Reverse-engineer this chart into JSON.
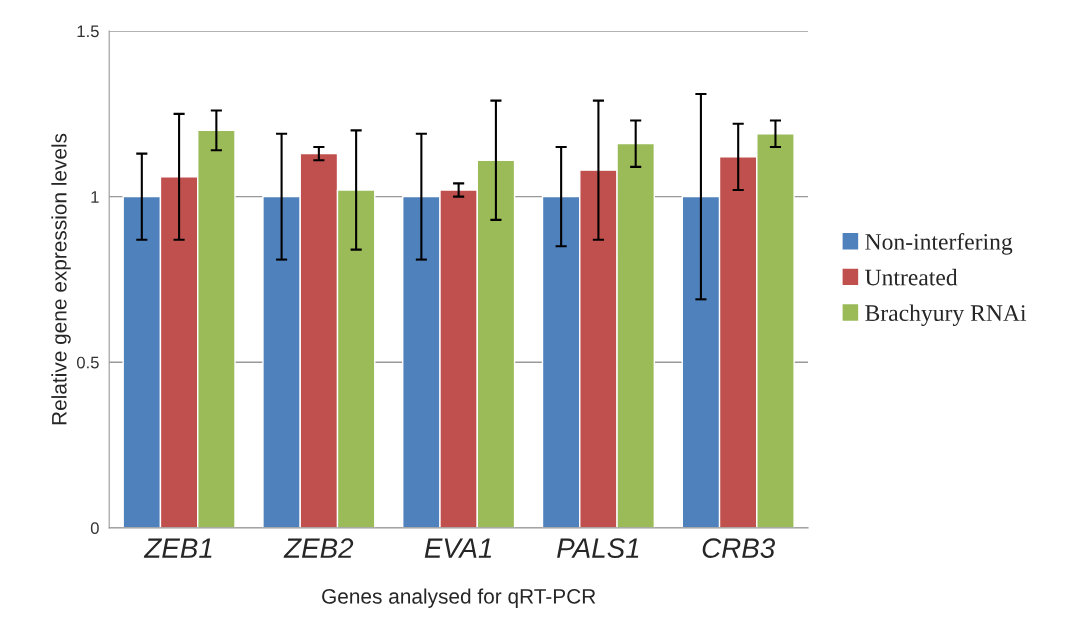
{
  "chart_data": {
    "type": "bar",
    "xlabel": "Genes analysed for qRT-PCR",
    "ylabel": "Relative gene expression levels",
    "categories": [
      "ZEB1",
      "ZEB2",
      "EVA1",
      "PALS1",
      "CRB3"
    ],
    "series": [
      {
        "name": "Non-interfering",
        "color": "#4f81bd",
        "values": [
          1.0,
          1.0,
          1.0,
          1.0,
          1.0
        ],
        "errors": [
          0.13,
          0.19,
          0.19,
          0.15,
          0.31
        ]
      },
      {
        "name": "Untreated",
        "color": "#c0504d",
        "values": [
          1.06,
          1.13,
          1.02,
          1.08,
          1.12
        ],
        "errors": [
          0.19,
          0.02,
          0.02,
          0.21,
          0.1
        ]
      },
      {
        "name": "Brachyury RNAi",
        "color": "#9bbb59",
        "values": [
          1.2,
          1.02,
          1.11,
          1.16,
          1.19
        ],
        "errors": [
          0.06,
          0.18,
          0.18,
          0.07,
          0.04
        ]
      }
    ],
    "ylim": [
      0,
      1.5
    ],
    "yticks": [
      0,
      0.5,
      1,
      1.5
    ],
    "grid": "y",
    "legend": "right"
  }
}
